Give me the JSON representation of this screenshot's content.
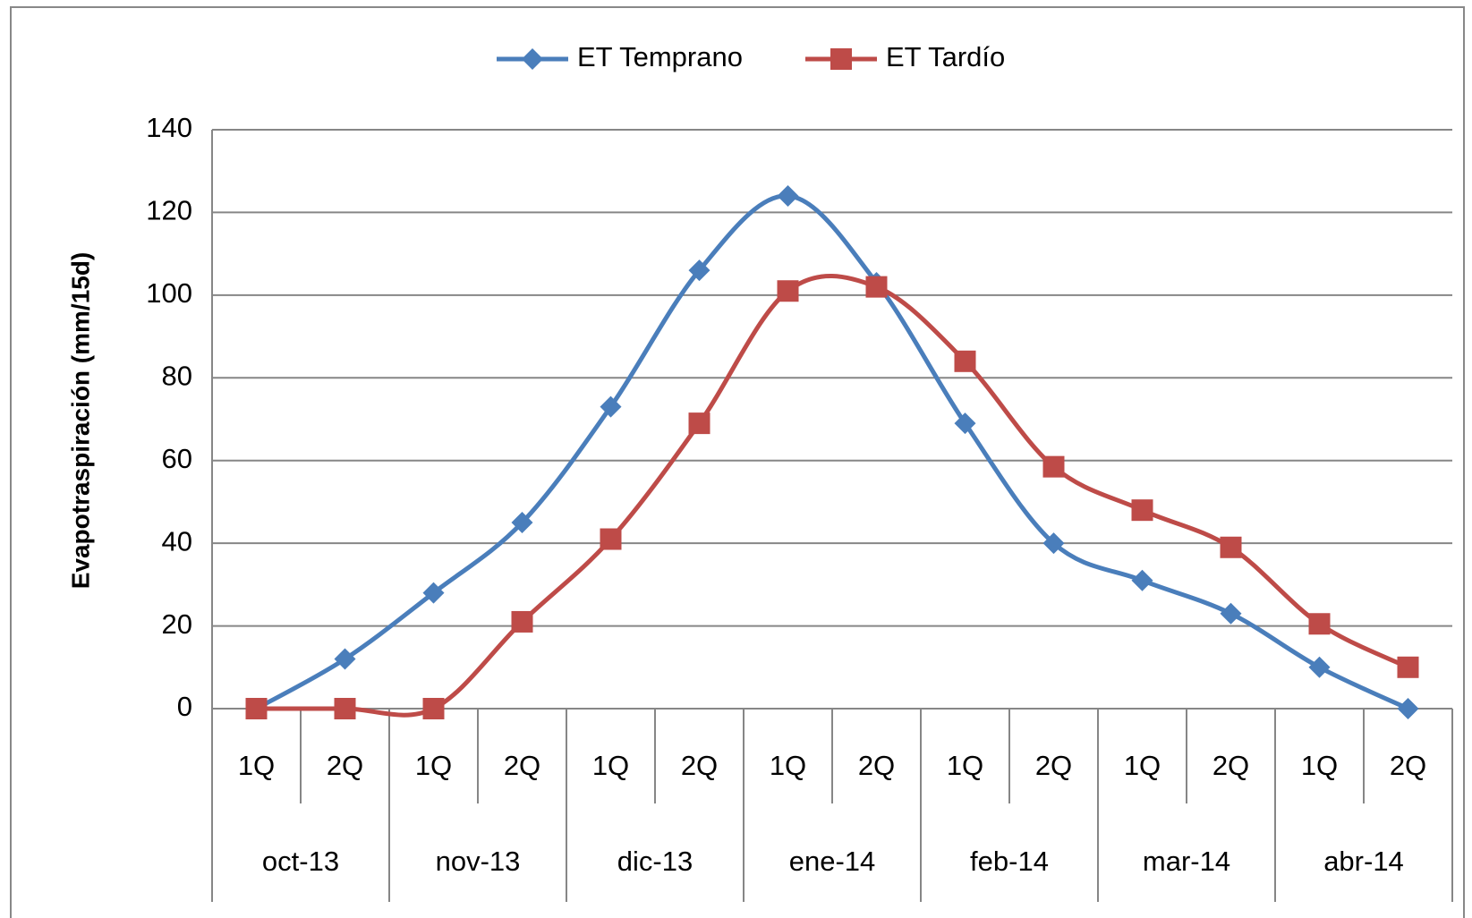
{
  "chart_data": {
    "type": "line",
    "y_label": "Evapotraspiración  (mm/15d)",
    "categories": [
      "1Q",
      "2Q",
      "1Q",
      "2Q",
      "1Q",
      "2Q",
      "1Q",
      "2Q",
      "1Q",
      "2Q",
      "1Q",
      "2Q",
      "1Q",
      "2Q"
    ],
    "category_groups": [
      "oct-13",
      "nov-13",
      "dic-13",
      "ene-14",
      "feb-14",
      "mar-14",
      "abr-14"
    ],
    "series": [
      {
        "name": "ET Temprano",
        "color": "#4a7ebb",
        "marker": "diamond",
        "values": [
          0,
          12,
          28,
          45,
          73,
          106,
          124,
          103,
          69,
          40,
          31,
          23,
          10,
          0
        ]
      },
      {
        "name": "ET Tardío",
        "color": "#be4b48",
        "marker": "square",
        "values": [
          0,
          0,
          0,
          21,
          41,
          69,
          101,
          102,
          84,
          58.5,
          48,
          39,
          20.5,
          10
        ]
      }
    ],
    "ylim": [
      0,
      140
    ],
    "yticks": [
      0,
      20,
      40,
      60,
      80,
      100,
      120,
      140
    ],
    "grid": true,
    "legend": "top"
  }
}
